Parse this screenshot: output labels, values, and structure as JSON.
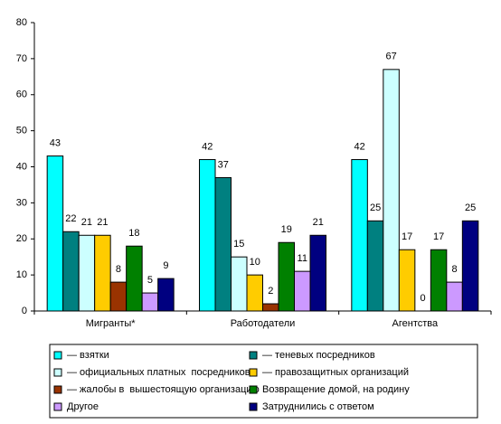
{
  "chart_data": {
    "type": "bar",
    "categories": [
      "Мигранты*",
      "Работодатели",
      "Агентства"
    ],
    "series": [
      {
        "name": "— взятки",
        "color": "#00ffff",
        "values": [
          43,
          42,
          42
        ]
      },
      {
        "name": "— теневых посредников",
        "color": "#008080",
        "values": [
          22,
          37,
          25
        ]
      },
      {
        "name": "— официальных платных  посредников",
        "color": "#ccffff",
        "values": [
          21,
          15,
          67
        ]
      },
      {
        "name": "— правозащитных организаций",
        "color": "#ffcc00",
        "values": [
          21,
          10,
          17
        ]
      },
      {
        "name": "— жалобы в  вышестоящую организацию",
        "color": "#993300",
        "values": [
          8,
          2,
          0
        ]
      },
      {
        "name": "Возвращение домой, на родину",
        "color": "#008000",
        "values": [
          18,
          19,
          17
        ]
      },
      {
        "name": "Другое",
        "color": "#cc99ff",
        "values": [
          5,
          11,
          8
        ]
      },
      {
        "name": "Затруднились с ответом",
        "color": "#000080",
        "values": [
          9,
          21,
          25
        ]
      }
    ],
    "ylim": [
      0,
      80
    ],
    "yticks": [
      0,
      10,
      20,
      30,
      40,
      50,
      60,
      70,
      80
    ]
  }
}
